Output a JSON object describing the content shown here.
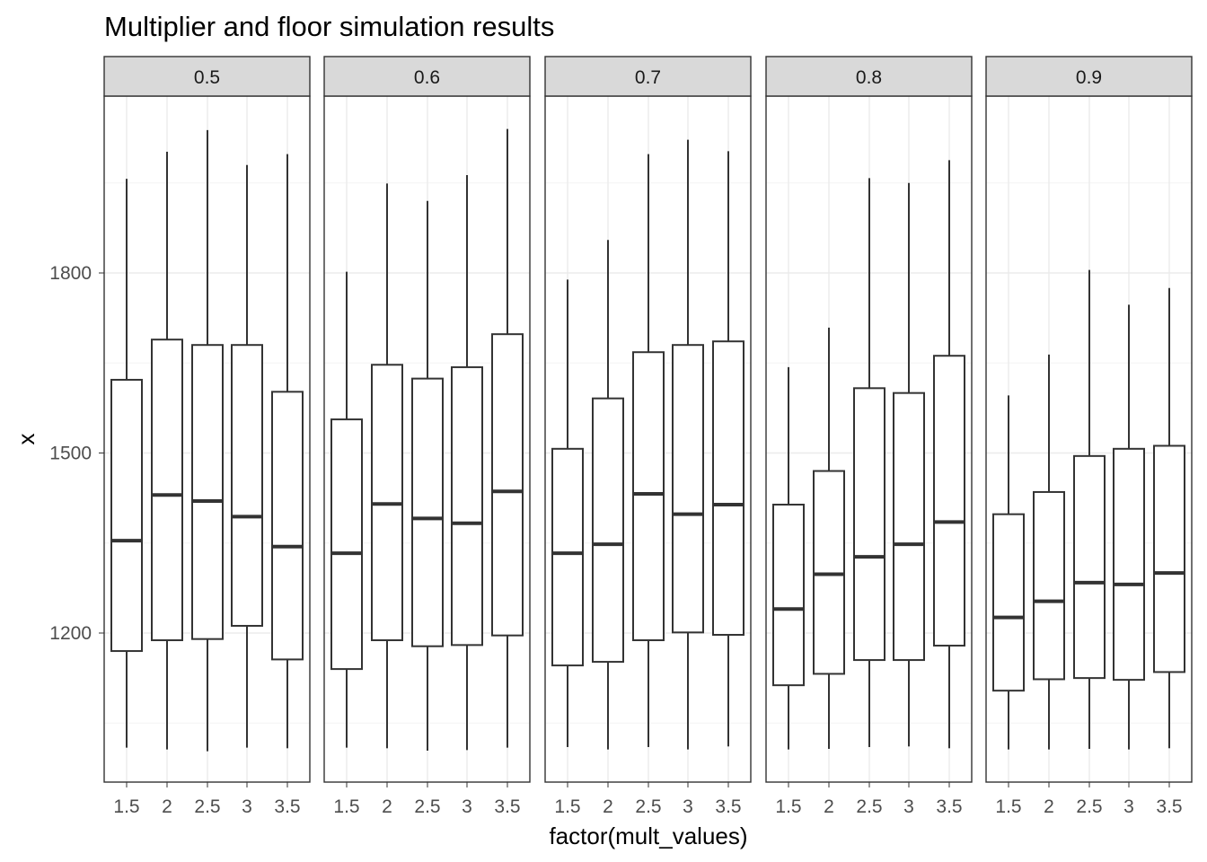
{
  "chart_data": {
    "type": "boxplot",
    "title": "Multiplier and floor simulation results",
    "xlabel": "factor(mult_values)",
    "ylabel": "x",
    "facet_labels": [
      "0.5",
      "0.6",
      "0.7",
      "0.8",
      "0.9"
    ],
    "categories": [
      "1.5",
      "2",
      "2.5",
      "3",
      "3.5"
    ],
    "yticks": [
      "1200",
      "1500",
      "1800"
    ],
    "ylim": [
      952,
      2094
    ],
    "grid": true,
    "colors": {
      "strip_fill": "#d9d9d9",
      "panel_border": "#333333",
      "grid_major": "#ebebeb",
      "grid_minor": "#f4f4f4",
      "box_line": "#333333",
      "box_fill": "#ffffff"
    },
    "facets": [
      {
        "label": "0.5",
        "boxes": [
          {
            "x": "1.5",
            "min": 1009,
            "q1": 1170,
            "median": 1354,
            "q3": 1622,
            "max": 1957
          },
          {
            "x": "2",
            "min": 1006,
            "q1": 1188,
            "median": 1430,
            "q3": 1689,
            "max": 2002
          },
          {
            "x": "2.5",
            "min": 1003,
            "q1": 1190,
            "median": 1420,
            "q3": 1680,
            "max": 2038
          },
          {
            "x": "3",
            "min": 1009,
            "q1": 1212,
            "median": 1394,
            "q3": 1680,
            "max": 1980
          },
          {
            "x": "3.5",
            "min": 1008,
            "q1": 1156,
            "median": 1344,
            "q3": 1602,
            "max": 1998
          }
        ]
      },
      {
        "label": "0.6",
        "boxes": [
          {
            "x": "1.5",
            "min": 1009,
            "q1": 1140,
            "median": 1333,
            "q3": 1556,
            "max": 1802
          },
          {
            "x": "2",
            "min": 1008,
            "q1": 1188,
            "median": 1415,
            "q3": 1647,
            "max": 1949
          },
          {
            "x": "2.5",
            "min": 1004,
            "q1": 1178,
            "median": 1391,
            "q3": 1624,
            "max": 1920
          },
          {
            "x": "3",
            "min": 1005,
            "q1": 1180,
            "median": 1383,
            "q3": 1643,
            "max": 1963
          },
          {
            "x": "3.5",
            "min": 1009,
            "q1": 1196,
            "median": 1436,
            "q3": 1698,
            "max": 2040
          }
        ]
      },
      {
        "label": "0.7",
        "boxes": [
          {
            "x": "1.5",
            "min": 1010,
            "q1": 1146,
            "median": 1333,
            "q3": 1507,
            "max": 1789
          },
          {
            "x": "2",
            "min": 1006,
            "q1": 1152,
            "median": 1348,
            "q3": 1591,
            "max": 1855
          },
          {
            "x": "2.5",
            "min": 1010,
            "q1": 1188,
            "median": 1432,
            "q3": 1668,
            "max": 1998
          },
          {
            "x": "3",
            "min": 1006,
            "q1": 1201,
            "median": 1398,
            "q3": 1680,
            "max": 2022
          },
          {
            "x": "3.5",
            "min": 1011,
            "q1": 1197,
            "median": 1414,
            "q3": 1686,
            "max": 2003
          }
        ]
      },
      {
        "label": "0.8",
        "boxes": [
          {
            "x": "1.5",
            "min": 1006,
            "q1": 1113,
            "median": 1240,
            "q3": 1414,
            "max": 1643
          },
          {
            "x": "2",
            "min": 1007,
            "q1": 1132,
            "median": 1298,
            "q3": 1470,
            "max": 1709
          },
          {
            "x": "2.5",
            "min": 1010,
            "q1": 1155,
            "median": 1327,
            "q3": 1608,
            "max": 1958
          },
          {
            "x": "3",
            "min": 1011,
            "q1": 1155,
            "median": 1348,
            "q3": 1600,
            "max": 1950
          },
          {
            "x": "3.5",
            "min": 1008,
            "q1": 1179,
            "median": 1385,
            "q3": 1662,
            "max": 1988
          }
        ]
      },
      {
        "label": "0.9",
        "boxes": [
          {
            "x": "1.5",
            "min": 1006,
            "q1": 1104,
            "median": 1226,
            "q3": 1398,
            "max": 1596
          },
          {
            "x": "2",
            "min": 1006,
            "q1": 1123,
            "median": 1253,
            "q3": 1435,
            "max": 1664
          },
          {
            "x": "2.5",
            "min": 1007,
            "q1": 1125,
            "median": 1284,
            "q3": 1495,
            "max": 1805
          },
          {
            "x": "3",
            "min": 1006,
            "q1": 1122,
            "median": 1281,
            "q3": 1507,
            "max": 1747
          },
          {
            "x": "3.5",
            "min": 1008,
            "q1": 1135,
            "median": 1300,
            "q3": 1512,
            "max": 1775
          }
        ]
      }
    ]
  }
}
